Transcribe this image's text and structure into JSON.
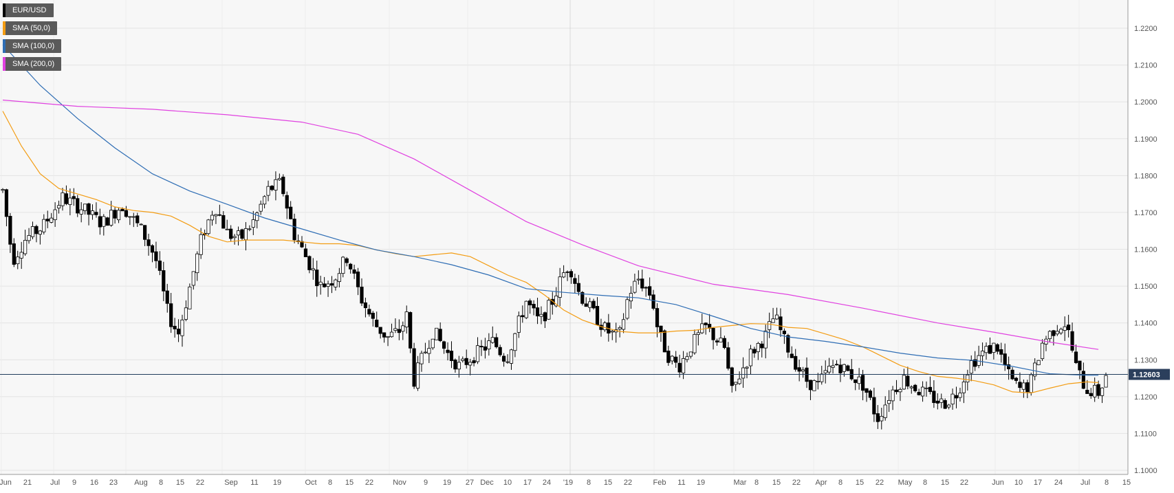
{
  "chart_data": {
    "type": "candlestick",
    "symbol": "EUR/USD",
    "timeframe": "daily",
    "last_price": 1.12603,
    "last_price_label": "1.12603",
    "y_axis_labels": [
      "1.2200",
      "1.2100",
      "1.2000",
      "1.1900",
      "1.1800",
      "1.1700",
      "1.1600",
      "1.1500",
      "1.1400",
      "1.1300",
      "1.1200",
      "1.1100",
      "1.1000"
    ],
    "ylim": [
      1.0995,
      1.2245
    ],
    "x_axis_labels": [
      "Jun",
      "21",
      "Jul",
      "9",
      "16",
      "23",
      "Aug",
      "8",
      "15",
      "22",
      "Sep",
      "11",
      "19",
      "Oct",
      "8",
      "15",
      "22",
      "Nov",
      "9",
      "19",
      "27",
      "Dec",
      "10",
      "17",
      "24",
      "'19",
      "8",
      "15",
      "22",
      "Feb",
      "11",
      "19",
      "Mar",
      "8",
      "15",
      "22",
      "Apr",
      "8",
      "15",
      "22",
      "May",
      "8",
      "15",
      "22",
      "Jun",
      "10",
      "17",
      "24",
      "Jul",
      "8",
      "15"
    ],
    "grid": true,
    "legend_placement": "top-left",
    "indicators": [
      {
        "name": "EUR/USD",
        "color": "#000000"
      },
      {
        "name": "SMA (50,0)",
        "color": "#f39c12"
      },
      {
        "name": "SMA (100,0)",
        "color": "#2e6db4"
      },
      {
        "name": "SMA (200,0)",
        "color": "#e040e0"
      }
    ],
    "series": [
      {
        "name": "SMA (50,0)",
        "color": "#f39c12",
        "points": [
          [
            0,
            1.1975
          ],
          [
            5,
            1.188
          ],
          [
            10,
            1.1805
          ],
          [
            15,
            1.1765
          ],
          [
            20,
            1.175
          ],
          [
            25,
            1.1735
          ],
          [
            30,
            1.1715
          ],
          [
            35,
            1.1705
          ],
          [
            40,
            1.17
          ],
          [
            45,
            1.169
          ],
          [
            50,
            1.1665
          ],
          [
            55,
            1.1635
          ],
          [
            60,
            1.162
          ],
          [
            65,
            1.1625
          ],
          [
            70,
            1.1625
          ],
          [
            75,
            1.1625
          ],
          [
            80,
            1.162
          ],
          [
            85,
            1.1615
          ],
          [
            90,
            1.1615
          ],
          [
            95,
            1.161
          ],
          [
            100,
            1.1598
          ],
          [
            105,
            1.1588
          ],
          [
            110,
            1.158
          ],
          [
            115,
            1.1585
          ],
          [
            120,
            1.159
          ],
          [
            125,
            1.158
          ],
          [
            130,
            1.1555
          ],
          [
            135,
            1.153
          ],
          [
            140,
            1.151
          ],
          [
            145,
            1.1475
          ],
          [
            150,
            1.1435
          ],
          [
            155,
            1.1408
          ],
          [
            160,
            1.139
          ],
          [
            165,
            1.1377
          ],
          [
            170,
            1.1373
          ],
          [
            175,
            1.1373
          ],
          [
            180,
            1.1378
          ],
          [
            185,
            1.138
          ],
          [
            190,
            1.1388
          ],
          [
            195,
            1.1393
          ],
          [
            200,
            1.1398
          ],
          [
            205,
            1.1397
          ],
          [
            210,
            1.1388
          ],
          [
            215,
            1.1385
          ],
          [
            220,
            1.137
          ],
          [
            225,
            1.1355
          ],
          [
            230,
            1.1335
          ],
          [
            235,
            1.131
          ],
          [
            240,
            1.1285
          ],
          [
            245,
            1.1268
          ],
          [
            250,
            1.1255
          ],
          [
            255,
            1.125
          ],
          [
            260,
            1.1243
          ],
          [
            265,
            1.1232
          ],
          [
            270,
            1.1213
          ],
          [
            275,
            1.121
          ],
          [
            280,
            1.1223
          ],
          [
            285,
            1.1235
          ],
          [
            290,
            1.124
          ],
          [
            293,
            1.1238
          ]
        ]
      },
      {
        "name": "SMA (100,0)",
        "color": "#2e6db4",
        "points": [
          [
            0,
            1.2155
          ],
          [
            10,
            1.2045
          ],
          [
            20,
            1.1955
          ],
          [
            30,
            1.1875
          ],
          [
            40,
            1.1805
          ],
          [
            50,
            1.1758
          ],
          [
            60,
            1.1722
          ],
          [
            70,
            1.1685
          ],
          [
            80,
            1.1655
          ],
          [
            90,
            1.1625
          ],
          [
            100,
            1.1598
          ],
          [
            110,
            1.158
          ],
          [
            120,
            1.1558
          ],
          [
            130,
            1.153
          ],
          [
            140,
            1.1493
          ],
          [
            150,
            1.1483
          ],
          [
            160,
            1.1475
          ],
          [
            170,
            1.1468
          ],
          [
            180,
            1.145
          ],
          [
            190,
            1.1418
          ],
          [
            200,
            1.1385
          ],
          [
            210,
            1.1362
          ],
          [
            220,
            1.135
          ],
          [
            230,
            1.1335
          ],
          [
            240,
            1.1318
          ],
          [
            250,
            1.1305
          ],
          [
            260,
            1.1298
          ],
          [
            270,
            1.1282
          ],
          [
            280,
            1.1262
          ],
          [
            290,
            1.1258
          ],
          [
            293,
            1.1258
          ]
        ]
      },
      {
        "name": "SMA (200,0)",
        "color": "#e040e0",
        "points": [
          [
            0,
            1.2005
          ],
          [
            20,
            1.1988
          ],
          [
            40,
            1.198
          ],
          [
            60,
            1.1965
          ],
          [
            80,
            1.1945
          ],
          [
            95,
            1.1912
          ],
          [
            110,
            1.1845
          ],
          [
            125,
            1.176
          ],
          [
            140,
            1.1675
          ],
          [
            155,
            1.1612
          ],
          [
            170,
            1.1555
          ],
          [
            190,
            1.1505
          ],
          [
            210,
            1.1477
          ],
          [
            230,
            1.144
          ],
          [
            250,
            1.14
          ],
          [
            265,
            1.1375
          ],
          [
            280,
            1.1348
          ],
          [
            293,
            1.1328
          ]
        ]
      }
    ]
  }
}
